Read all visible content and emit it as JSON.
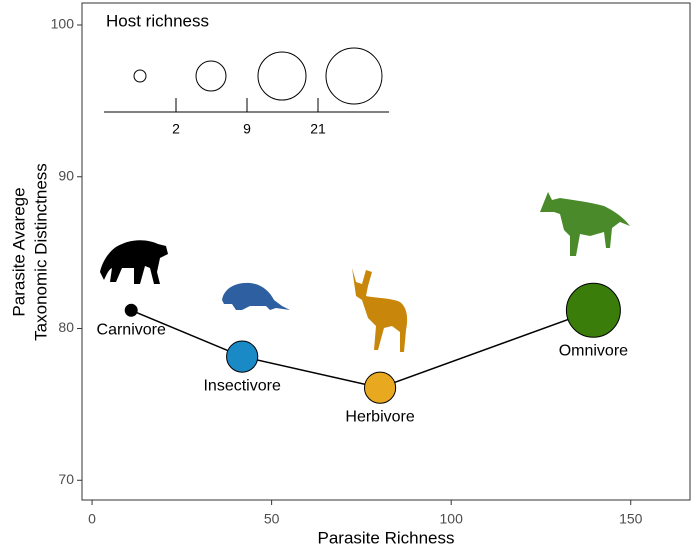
{
  "chart_data": {
    "type": "scatter",
    "xlabel": "Parasite Richness",
    "ylabel": [
      "Parasite Avarege",
      "Taxonomic Distinctness"
    ],
    "x": [
      10.9,
      41.8,
      80.2,
      139.6
    ],
    "values": [
      81.2,
      78.15,
      76.1,
      81.2
    ],
    "sizes": [
      1,
      8,
      8,
      25
    ],
    "labels": [
      "Carnivore",
      "Insectivore",
      "Herbivore",
      "Omnivore"
    ],
    "colors": [
      "#000000",
      "#1a8ac6",
      "#e8a820",
      "#3a7d0a"
    ],
    "line_color": "#000000",
    "xlim": [
      -2.8,
      166.5
    ],
    "ylim": [
      68.7,
      101.45
    ],
    "xticks": [
      0,
      50,
      100,
      150
    ],
    "yticks": [
      70,
      80,
      90,
      100
    ],
    "size_legend": {
      "title": "Host richness",
      "breaks": [
        2,
        9,
        21
      ]
    }
  }
}
